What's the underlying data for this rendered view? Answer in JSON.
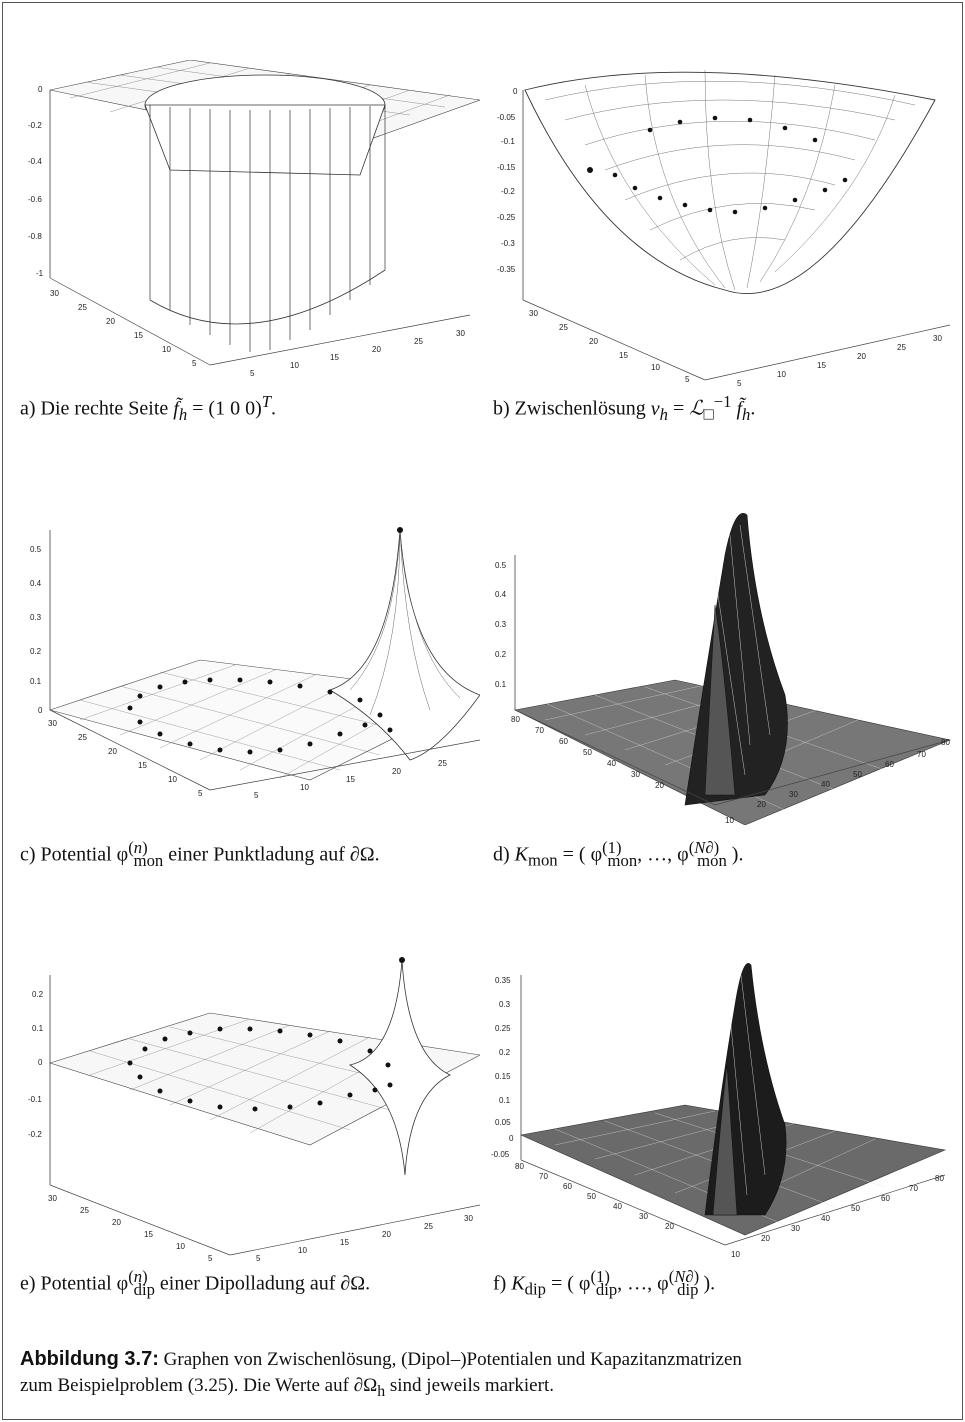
{
  "figure": {
    "caption_label": "Abbildung 3.7:",
    "caption_text_line1": "Graphen von Zwischenlösung, (Dipol–)Potentialen und Kapazitanzmatrizen",
    "caption_text_line2": "zum Beispielproblem (3.25). Die Werte auf ∂Ω",
    "caption_text_sub": "h",
    "caption_text_end": " sind jeweils markiert."
  },
  "panels": [
    {
      "id": "a",
      "caption_prefix": "a) Die rechte Seite ",
      "caption_math": "f̃ₕ = (1 0 0)ᵀ",
      "caption_suffix": "."
    },
    {
      "id": "b",
      "caption_prefix": "b) Zwischenlösung ",
      "caption_math": "vₕ = ℒ□⁻¹ f̃ₕ",
      "caption_suffix": "."
    },
    {
      "id": "c",
      "caption_prefix": "c) Potential ",
      "caption_math": "φ(n)mon",
      "caption_suffix": " einer Punktladung auf ∂Ω."
    },
    {
      "id": "d",
      "caption_prefix": "d) ",
      "caption_math": "Kmon = (φ(1)mon, …, φ(N∂)mon)",
      "caption_suffix": "."
    },
    {
      "id": "e",
      "caption_prefix": "e) Potential ",
      "caption_math": "φ(n)dip",
      "caption_suffix": " einer Dipolladung auf ∂Ω."
    },
    {
      "id": "f",
      "caption_prefix": "f) ",
      "caption_math": "Kdip = (φ(1)dip, …, φ(N∂)dip)",
      "caption_suffix": "."
    }
  ],
  "chart_data": [
    {
      "type": "surface",
      "panel": "a",
      "zticks": [
        "0",
        "-0.2",
        "-0.4",
        "-0.6",
        "-0.8",
        "-1"
      ],
      "xticks": [
        "5",
        "10",
        "15",
        "20",
        "25",
        "30"
      ],
      "yticks": [
        "5",
        "10",
        "15",
        "20",
        "25",
        "30"
      ]
    },
    {
      "type": "surface",
      "panel": "b",
      "zticks": [
        "0",
        "-0.05",
        "-0.1",
        "-0.15",
        "-0.2",
        "-0.25",
        "-0.3",
        "-0.35"
      ],
      "xticks": [
        "5",
        "10",
        "15",
        "20",
        "25",
        "30"
      ],
      "yticks": [
        "5",
        "10",
        "15",
        "20",
        "25",
        "30"
      ]
    },
    {
      "type": "surface",
      "panel": "c",
      "zticks": [
        "0.5",
        "0.4",
        "0.3",
        "0.2",
        "0.1",
        "0"
      ],
      "xticks": [
        "5",
        "10",
        "15",
        "20",
        "25"
      ],
      "yticks": [
        "5",
        "10",
        "15",
        "20",
        "25",
        "30"
      ]
    },
    {
      "type": "surface",
      "panel": "d",
      "zticks": [
        "0.5",
        "0.4",
        "0.3",
        "0.2",
        "0.1"
      ],
      "xticks": [
        "10",
        "20",
        "30",
        "40",
        "50",
        "60",
        "70",
        "80"
      ],
      "yticks": [
        "10",
        "20",
        "30",
        "40",
        "50",
        "60",
        "70",
        "80"
      ]
    },
    {
      "type": "surface",
      "panel": "e",
      "zticks": [
        "0.2",
        "0.1",
        "0",
        "-0.1",
        "-0.2"
      ],
      "xticks": [
        "5",
        "10",
        "15",
        "20",
        "25",
        "30"
      ],
      "yticks": [
        "5",
        "10",
        "15",
        "20",
        "25",
        "30"
      ]
    },
    {
      "type": "surface",
      "panel": "f",
      "zticks": [
        "0.35",
        "0.3",
        "0.25",
        "0.2",
        "0.15",
        "0.1",
        "0.05",
        "0",
        "-0.05"
      ],
      "xticks": [
        "10",
        "20",
        "30",
        "40",
        "50",
        "60",
        "70",
        "80"
      ],
      "yticks": [
        "10",
        "20",
        "30",
        "40",
        "50",
        "60",
        "70",
        "80"
      ]
    }
  ]
}
